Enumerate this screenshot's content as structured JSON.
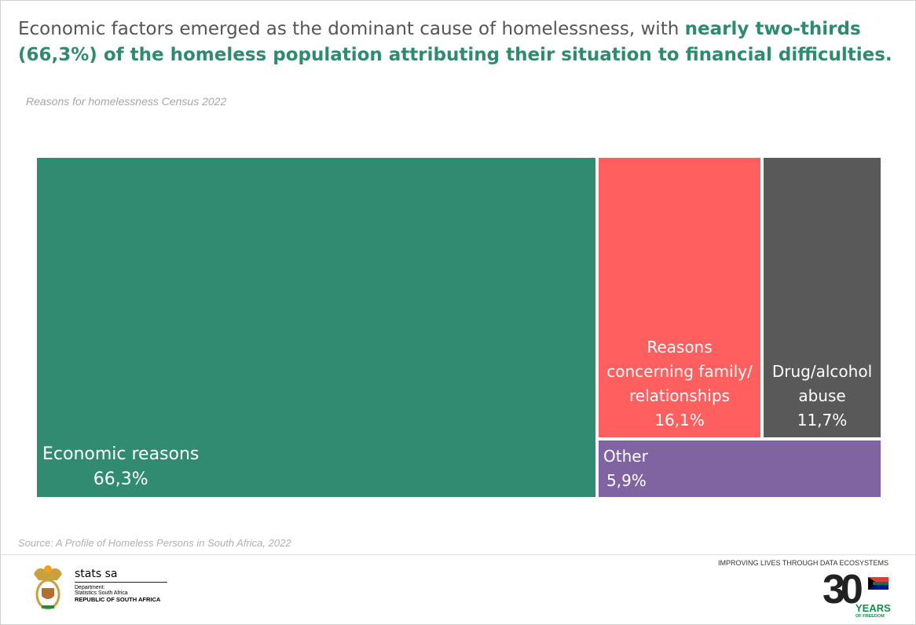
{
  "headline": {
    "plain": "Economic factors emerged as the dominant cause of homelessness, with ",
    "bold": "nearly two-thirds (66,3%) of the homeless population attributing their situation to financial difficulties."
  },
  "chart_data": {
    "type": "treemap",
    "title": "Reasons for homelessness Census 2022",
    "items": [
      {
        "label": "Economic reasons",
        "value": 66.3,
        "value_label": "66,3%",
        "color": "#318b70"
      },
      {
        "label": "Reasons concerning family/ relationships",
        "value": 16.1,
        "value_label": "16,1%",
        "color": "#ff5f5f"
      },
      {
        "label": "Drug/alcohol abuse",
        "value": 11.7,
        "value_label": "11,7%",
        "color": "#595959"
      },
      {
        "label": "Other",
        "value": 5.9,
        "value_label": "5,9%",
        "color": "#8064a2"
      }
    ]
  },
  "source": "Source:  A Profile of Homeless Persons in South Africa, 2022",
  "footer": {
    "brand": "stats sa",
    "dept": "Department:",
    "dept_name": "Statistics South Africa",
    "republic": "REPUBLIC OF SOUTH AFRICA",
    "tagline": "IMPROVING LIVES THROUGH DATA ECOSYSTEMS",
    "logo30_years": "YEARS",
    "logo30_freedom": "OF FREEDOM"
  }
}
